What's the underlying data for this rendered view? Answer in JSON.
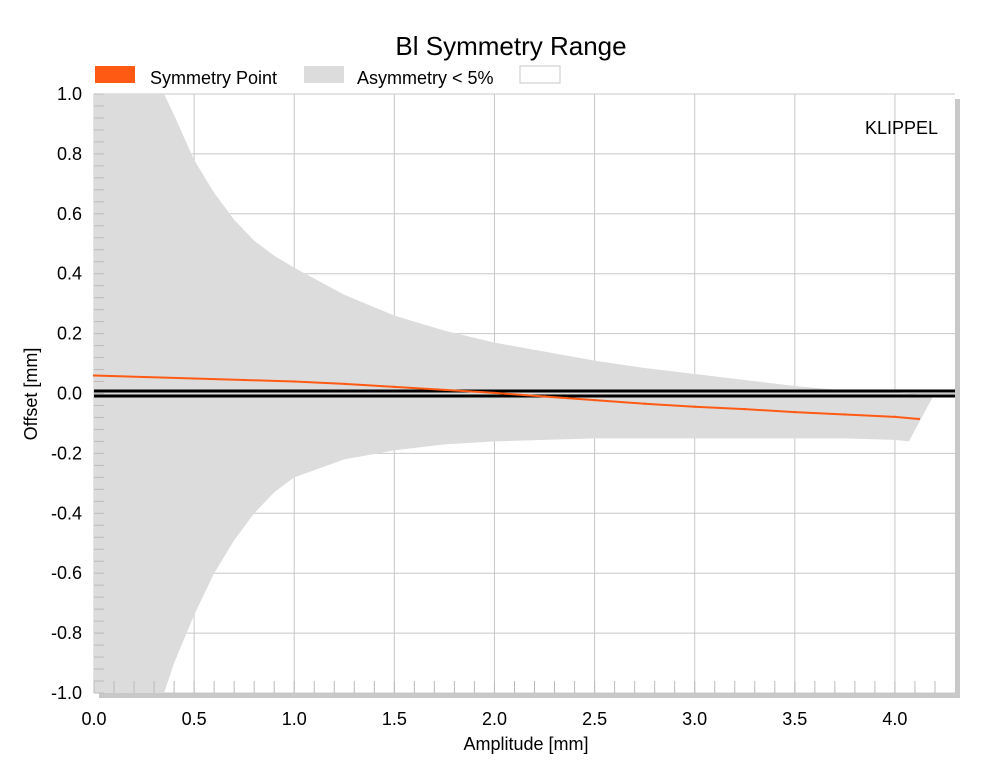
{
  "chart_data": {
    "type": "area",
    "title": "Bl Symmetry Range",
    "xlabel": "Amplitude [mm]",
    "ylabel": "Offset [mm]",
    "xlim": [
      0,
      4.3
    ],
    "ylim": [
      -1.0,
      1.0
    ],
    "x_ticks": [
      "0.0",
      "0.5",
      "1.0",
      "1.5",
      "2.0",
      "2.5",
      "3.0",
      "3.5",
      "4.0"
    ],
    "y_ticks": [
      "1.0",
      "0.8",
      "0.6",
      "0.4",
      "0.2",
      "0.0",
      "-0.2",
      "-0.4",
      "-0.6",
      "-0.8",
      "-1.0"
    ],
    "grid": true,
    "legend_placement": "top",
    "watermark": "KLIPPEL",
    "legend": [
      {
        "label": "Symmetry Point",
        "color": "#ff5a14"
      },
      {
        "label": "Asymmetry < 5%",
        "color": "#dcdcdc"
      },
      {
        "label": "",
        "color": "#ffffff"
      }
    ],
    "series": [
      {
        "name": "Symmetry Point",
        "color": "#ff5a14",
        "x": [
          0.0,
          0.25,
          0.5,
          0.75,
          1.0,
          1.25,
          1.5,
          1.75,
          2.0,
          2.25,
          2.5,
          2.75,
          3.0,
          3.25,
          3.5,
          3.75,
          4.0,
          4.12
        ],
        "y": [
          0.06,
          0.055,
          0.05,
          0.045,
          0.04,
          0.032,
          0.022,
          0.012,
          0.002,
          -0.01,
          -0.022,
          -0.034,
          -0.044,
          -0.052,
          -0.062,
          -0.07,
          -0.078,
          -0.085
        ]
      },
      {
        "name": "Asymmetry < 5%",
        "color": "#dcdcdc",
        "x": [
          0.0,
          0.35,
          0.4,
          0.5,
          0.6,
          0.7,
          0.8,
          0.9,
          1.0,
          1.25,
          1.5,
          1.75,
          2.0,
          2.25,
          2.5,
          2.75,
          3.0,
          3.25,
          3.5,
          3.75,
          4.0,
          4.07,
          4.19
        ],
        "upper": [
          1.0,
          1.0,
          0.93,
          0.78,
          0.67,
          0.58,
          0.51,
          0.46,
          0.42,
          0.33,
          0.26,
          0.21,
          0.17,
          0.14,
          0.11,
          0.085,
          0.065,
          0.045,
          0.025,
          0.01,
          0.005,
          0.0,
          -0.01
        ],
        "lower": [
          -1.0,
          -1.0,
          -0.9,
          -0.74,
          -0.6,
          -0.49,
          -0.4,
          -0.33,
          -0.28,
          -0.22,
          -0.19,
          -0.17,
          -0.16,
          -0.155,
          -0.15,
          -0.15,
          -0.15,
          -0.15,
          -0.15,
          -0.15,
          -0.155,
          -0.16,
          -0.01
        ]
      }
    ],
    "reference_line": {
      "y": 0.0,
      "color": "#000000"
    }
  }
}
